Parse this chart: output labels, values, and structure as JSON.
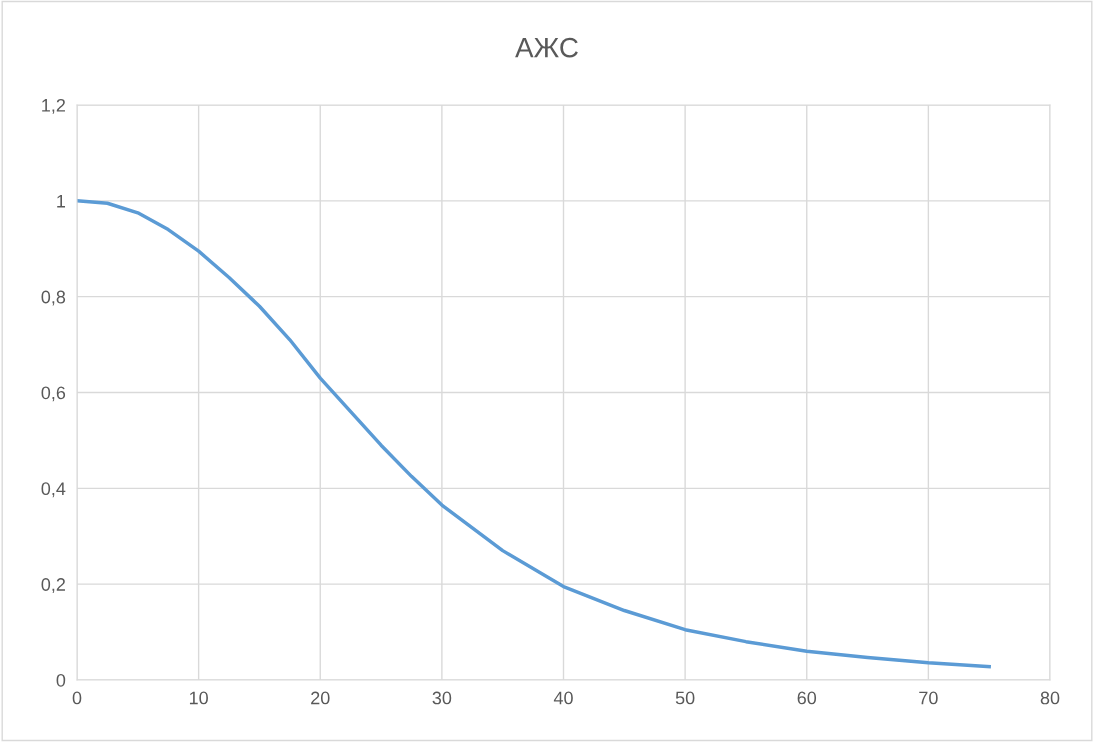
{
  "chart_data": {
    "type": "line",
    "title": "АЖС",
    "x": [
      0,
      2.5,
      5,
      7.5,
      10,
      12.5,
      15,
      17.5,
      20,
      22.5,
      25,
      27.5,
      30,
      35,
      40,
      45,
      50,
      55,
      60,
      65,
      70,
      75
    ],
    "series": [
      {
        "color": "#5b9bd5",
        "values": [
          1.0,
          0.995,
          0.975,
          0.94,
          0.895,
          0.84,
          0.78,
          0.71,
          0.63,
          0.56,
          0.49,
          0.425,
          0.365,
          0.27,
          0.195,
          0.145,
          0.105,
          0.08,
          0.06,
          0.047,
          0.036,
          0.028
        ]
      }
    ],
    "xlim": [
      0,
      80
    ],
    "xticks": [
      0,
      10,
      20,
      30,
      40,
      50,
      60,
      70,
      80
    ],
    "ylim": [
      0,
      1.2
    ],
    "yticks": [
      0,
      {
        "value": 0.2,
        "label": "0,2"
      },
      {
        "value": 0.4,
        "label": "0,4"
      },
      {
        "value": 0.6,
        "label": "0,6"
      },
      {
        "value": 0.8,
        "label": "0,8"
      },
      1,
      {
        "value": 1.2,
        "label": "1,2"
      }
    ],
    "grid": true,
    "marker": "none",
    "line_style": "solid",
    "legend": false
  }
}
